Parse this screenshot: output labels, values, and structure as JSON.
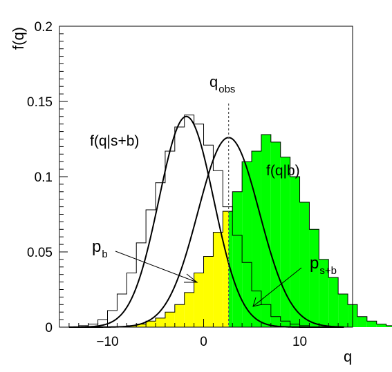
{
  "chart_data": {
    "type": "line",
    "title": "",
    "xlabel": "q",
    "ylabel": "f(q)",
    "xlim": [
      -15,
      15.5
    ],
    "ylim": [
      0,
      0.2
    ],
    "x_ticks": [
      -10,
      0,
      10
    ],
    "x_tick_labels": [
      "−10",
      "0",
      "10"
    ],
    "y_ticks": [
      0,
      0.05,
      0.1,
      0.15,
      0.2
    ],
    "y_tick_labels": [
      "0",
      "0.05",
      "0.1",
      "0.15",
      "0.2"
    ],
    "grid": false,
    "q_obs": 2.6,
    "series": [
      {
        "name": "f(q|s+b)",
        "mean": -1.8,
        "sigma": 2.85,
        "peak": 0.14
      },
      {
        "name": "f(q|b)",
        "mean": 2.6,
        "sigma": 3.2,
        "peak": 0.126
      }
    ],
    "histograms": {
      "bin_width": 1,
      "sb": {
        "edges_start": -13,
        "values": [
          0.001,
          0.002,
          0.005,
          0.011,
          0.022,
          0.036,
          0.056,
          0.078,
          0.096,
          0.117,
          0.133,
          0.141,
          0.135,
          0.121,
          0.104,
          0.08,
          0.061,
          0.043,
          0.024,
          0.015,
          0.007,
          0.004,
          0.002,
          0.001
        ]
      },
      "b": {
        "edges_start": -8,
        "values": [
          0.001,
          0.002,
          0.004,
          0.006,
          0.01,
          0.015,
          0.023,
          0.036,
          0.047,
          0.063,
          0.077,
          0.09,
          0.11,
          0.117,
          0.128,
          0.123,
          0.113,
          0.1,
          0.083,
          0.065,
          0.045,
          0.033,
          0.022,
          0.015,
          0.007,
          0.004,
          0.002,
          0.001
        ]
      }
    },
    "annotations": {
      "q_obs_label": "q",
      "q_obs_sub": "obs",
      "sb_curve_label": "f(q|s+b)",
      "b_curve_label": "f(q|b)",
      "pb_label": "p",
      "pb_sub": "b",
      "psb_label": "p",
      "psb_sub": "s+b"
    },
    "colors": {
      "pb_fill": "#ffff00",
      "psb_fill": "#00ff00",
      "line": "#000000"
    }
  }
}
